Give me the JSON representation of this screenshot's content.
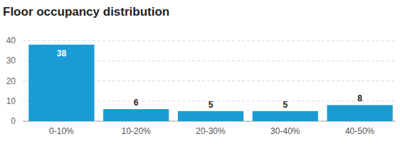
{
  "chart_data": {
    "type": "bar",
    "title": "Floor occupancy distribution",
    "categories": [
      "0-10%",
      "10-20%",
      "20-30%",
      "30-40%",
      "40-50%"
    ],
    "values": [
      38,
      6,
      5,
      5,
      8
    ],
    "color": "#1a9bd3",
    "ylim": [
      0,
      40
    ],
    "yticks": [
      0,
      10,
      20,
      30,
      40
    ],
    "grid": true,
    "data_labels": true
  }
}
